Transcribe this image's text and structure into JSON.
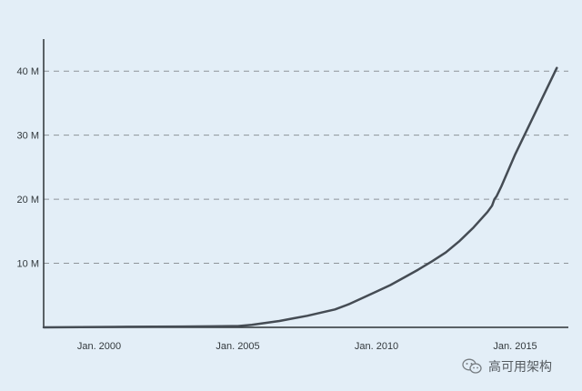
{
  "chart_data": {
    "type": "line",
    "title": "",
    "xlabel": "",
    "ylabel": "",
    "x_range": [
      "1998-01",
      "2016-12"
    ],
    "ylim": [
      0,
      45000000
    ],
    "grid": {
      "y": "dashed",
      "x": false
    },
    "line_color": "#454c54",
    "background": "#e3eef7",
    "y_ticks": [
      {
        "value": 10000000,
        "label": "10 M"
      },
      {
        "value": 20000000,
        "label": "20 M"
      },
      {
        "value": 30000000,
        "label": "30 M"
      },
      {
        "value": 40000000,
        "label": "40 M"
      }
    ],
    "x_ticks": [
      {
        "value": "2000-01",
        "label": "Jan. 2000"
      },
      {
        "value": "2005-01",
        "label": "Jan. 2005"
      },
      {
        "value": "2010-01",
        "label": "Jan. 2010"
      },
      {
        "value": "2015-01",
        "label": "Jan. 2015"
      }
    ],
    "series": [
      {
        "x": [
          "1998-01",
          "2000-01",
          "2001-01",
          "2002-01",
          "2003-01",
          "2004-01",
          "2005-01",
          "2005-07",
          "2006-01",
          "2006-07",
          "2007-01",
          "2007-07",
          "2008-01",
          "2008-07",
          "2009-01",
          "2009-07",
          "2010-01",
          "2010-07",
          "2011-01",
          "2011-07",
          "2012-01",
          "2012-07",
          "2013-01",
          "2013-07",
          "2014-01",
          "2014-03",
          "2014-04",
          "2014-05",
          "2014-07",
          "2015-01",
          "2015-07",
          "2016-01",
          "2016-07"
        ],
        "y": [
          0,
          50000,
          80000,
          100000,
          130000,
          150000,
          200000,
          400000,
          700000,
          1000000,
          1400000,
          1800000,
          2300000,
          2800000,
          3600000,
          4600000,
          5600000,
          6600000,
          7800000,
          9000000,
          10300000,
          11700000,
          13500000,
          15600000,
          18000000,
          19000000,
          20000000,
          20500000,
          22000000,
          27000000,
          31500000,
          36000000,
          40500000
        ]
      }
    ]
  },
  "watermark": {
    "text": "高可用架构",
    "icon": "wechat-icon"
  }
}
